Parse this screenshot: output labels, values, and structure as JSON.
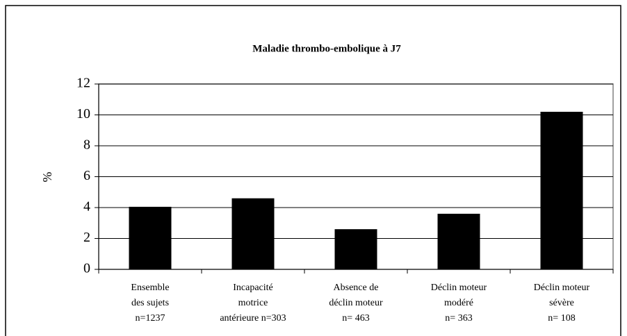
{
  "chart_data": {
    "type": "bar",
    "title": "Maladie thrombo-embolique à J7",
    "categories": [
      [
        "Ensemble",
        "des sujets",
        "n=1237"
      ],
      [
        "Incapacité",
        "motrice",
        "antérieure n=303"
      ],
      [
        "Absence de",
        "déclin moteur",
        "n= 463"
      ],
      [
        "Déclin moteur",
        "modéré",
        "n= 363"
      ],
      [
        "Déclin moteur",
        "sévère",
        "n= 108"
      ]
    ],
    "values": [
      4.05,
      4.6,
      2.6,
      3.6,
      10.2
    ],
    "color": "#000000",
    "ylabel": "%",
    "ylim": [
      0,
      12
    ],
    "yticks": [
      0,
      2,
      4,
      6,
      8,
      10,
      12
    ],
    "grid": true
  }
}
